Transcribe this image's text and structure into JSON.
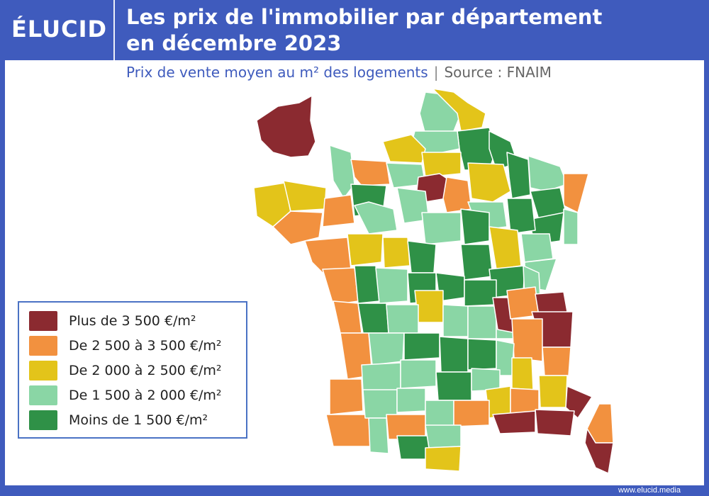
{
  "header": {
    "logo": "ÉLUCID",
    "title_line1": "Les prix de l'immobilier par département",
    "title_line2": "en décembre 2023"
  },
  "subtitle": {
    "text": "Prix de vente moyen au m² des logements",
    "separator": "|",
    "source": "Source : FNAIM"
  },
  "footer": {
    "site": "www.elucid.media"
  },
  "colors": {
    "dark_red": "#8b2a30",
    "orange": "#f2913f",
    "yellow": "#e3c41a",
    "light_green": "#8ad6a5",
    "dark_green": "#2f9147",
    "brand_blue": "#3f5bbd"
  },
  "legend": [
    {
      "label": "Plus de 3 500 €/m²",
      "color": "#8b2a30"
    },
    {
      "label": "De 2 500 à 3 500 €/m²",
      "color": "#f2913f"
    },
    {
      "label": "De 2 000 à 2 500 €/m²",
      "color": "#e3c41a"
    },
    {
      "label": "De 1 500 à 2 000 €/m²",
      "color": "#8ad6a5"
    },
    {
      "label": "Moins de 1 500 €/m²",
      "color": "#2f9147"
    }
  ]
}
